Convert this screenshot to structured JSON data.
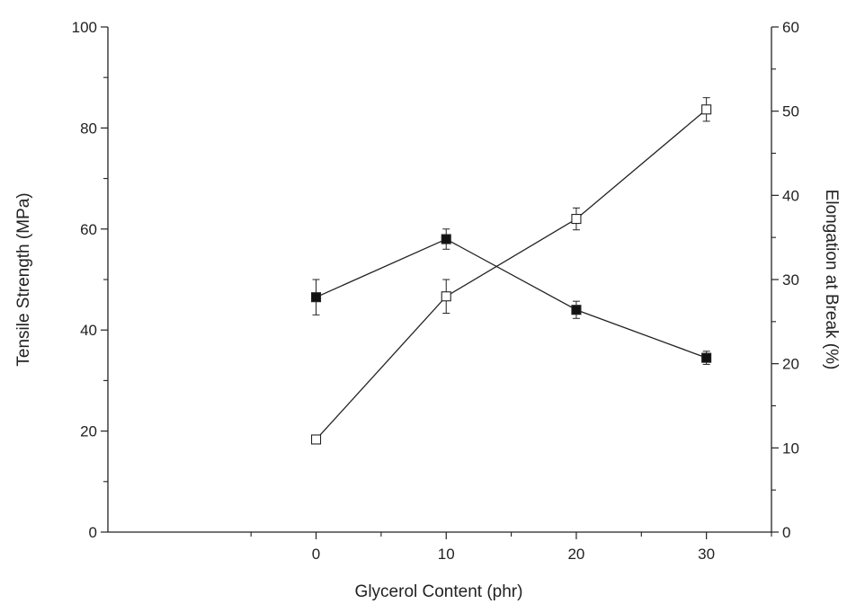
{
  "chart_data": {
    "type": "line",
    "xlabel": "Glycerol Content (phr)",
    "ylabel": "Tensile Strength (MPa)",
    "y2label": "Elongation at Break (%)",
    "x": [
      0,
      10,
      20,
      30
    ],
    "xlim": [
      -16,
      35
    ],
    "ylim": [
      0,
      100
    ],
    "y2lim": [
      0,
      60
    ],
    "x_ticks": [
      0,
      10,
      20,
      30
    ],
    "y_ticks": [
      0,
      20,
      40,
      60,
      80,
      100
    ],
    "y2_ticks": [
      0,
      10,
      20,
      30,
      40,
      50,
      60
    ],
    "grid": false,
    "series": [
      {
        "axis": "left",
        "marker": "filled-square",
        "values": [
          46.5,
          58,
          44,
          34.5
        ],
        "error": [
          3.5,
          2.0,
          1.7,
          1.3
        ]
      },
      {
        "axis": "right",
        "marker": "open-square",
        "values": [
          11,
          28,
          37.2,
          50.2
        ],
        "error": [
          0.4,
          2.0,
          1.3,
          1.4
        ]
      }
    ]
  }
}
